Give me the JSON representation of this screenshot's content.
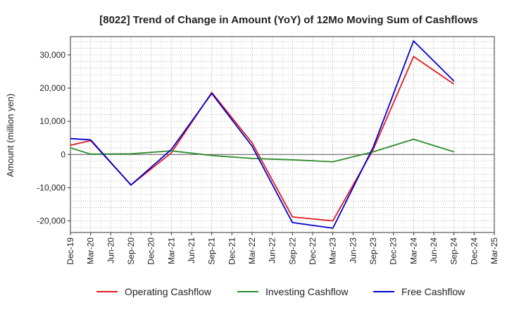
{
  "chart_data": {
    "type": "line",
    "title": "[8022]  Trend of Change in Amount (YoY) of 12Mo Moving Sum of Cashflows",
    "xlabel": "",
    "ylabel": "Amount (million yen)",
    "ylim": [
      -23500,
      35500
    ],
    "yticks": [
      -20000,
      -10000,
      0,
      10000,
      20000,
      30000
    ],
    "ytick_labels": [
      "-20,000",
      "-10,000",
      "0",
      "10,000",
      "20,000",
      "30,000"
    ],
    "categories": [
      "Dec-19",
      "Mar-20",
      "Jun-20",
      "Sep-20",
      "Dec-20",
      "Mar-21",
      "Jun-21",
      "Sep-21",
      "Dec-21",
      "Mar-22",
      "Jun-22",
      "Sep-22",
      "Dec-22",
      "Mar-23",
      "Jun-23",
      "Sep-23",
      "Dec-23",
      "Mar-24",
      "Jun-24",
      "Sep-24",
      "Dec-24",
      "Mar-25"
    ],
    "grid": true,
    "legend_position": "bottom",
    "series": [
      {
        "name": "Operating Cashflow",
        "color": "#e41a1c",
        "values": [
          2800,
          4200,
          null,
          -9200,
          null,
          500,
          null,
          18700,
          null,
          3500,
          null,
          -18800,
          null,
          -20000,
          null,
          1500,
          null,
          29500,
          null,
          21200,
          null,
          null
        ]
      },
      {
        "name": "Investing Cashflow",
        "color": "#2e8b2e",
        "values": [
          2000,
          100,
          null,
          200,
          null,
          1100,
          null,
          -300,
          null,
          -1200,
          null,
          -1600,
          null,
          -2200,
          null,
          800,
          null,
          4600,
          null,
          800,
          null,
          null
        ]
      },
      {
        "name": "Free Cashflow",
        "color": "#0000cc",
        "values": [
          4800,
          4400,
          null,
          -9200,
          null,
          1500,
          null,
          18400,
          null,
          2500,
          null,
          -20500,
          null,
          -22200,
          null,
          2200,
          null,
          34200,
          null,
          22100,
          null,
          null
        ]
      }
    ]
  }
}
